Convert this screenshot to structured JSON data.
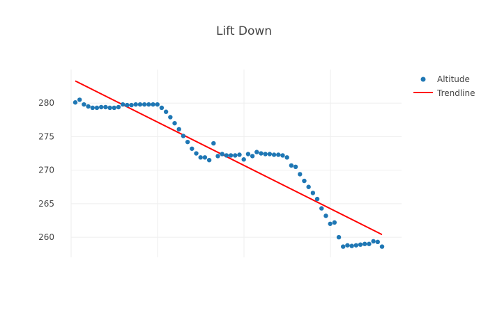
{
  "chart_data": {
    "type": "scatter",
    "title": "Lift Down",
    "xlabel": "",
    "ylabel": "",
    "ylim": [
      257,
      285
    ],
    "yticks": [
      260,
      265,
      270,
      275,
      280
    ],
    "grid": true,
    "legend_placement": "top-right",
    "colors": {
      "points": "#1f77b4",
      "trend": "#ff0000",
      "grid": "#eeeeee",
      "text": "#444444"
    },
    "series": [
      {
        "name": "Altitude",
        "mode": "markers",
        "y": [
          280.1,
          280.5,
          279.8,
          279.5,
          279.3,
          279.3,
          279.4,
          279.4,
          279.3,
          279.3,
          279.4,
          279.8,
          279.7,
          279.7,
          279.8,
          279.8,
          279.8,
          279.8,
          279.8,
          279.8,
          279.3,
          278.7,
          277.9,
          277.0,
          276.1,
          275.1,
          274.2,
          273.2,
          272.5,
          271.9,
          271.9,
          271.5,
          274.0,
          272.1,
          272.4,
          272.2,
          272.2,
          272.2,
          272.3,
          271.6,
          272.4,
          272.1,
          272.7,
          272.5,
          272.4,
          272.4,
          272.3,
          272.3,
          272.2,
          271.9,
          270.7,
          270.5,
          269.4,
          268.4,
          267.5,
          266.6,
          265.7,
          264.3,
          263.2,
          262.0,
          262.2,
          260.0,
          258.6,
          258.8,
          258.7,
          258.8,
          258.9,
          259.0,
          259.0,
          259.4,
          259.3,
          258.6
        ]
      },
      {
        "name": "Trendline",
        "mode": "lines",
        "y": [
          283.3,
          260.4
        ]
      }
    ]
  }
}
